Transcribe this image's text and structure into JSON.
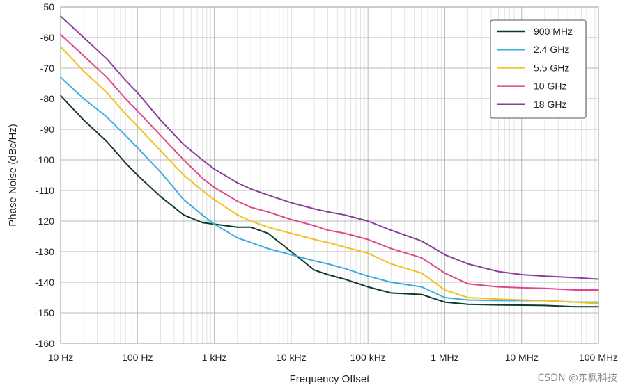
{
  "chart_data": {
    "type": "line",
    "xlabel": "Frequency Offset",
    "ylabel": "Phase Noise (dBc/Hz)",
    "x_scale": "log",
    "xlim": [
      10,
      100000000
    ],
    "ylim": [
      -160,
      -50
    ],
    "grid": true,
    "legend_position": "top-right",
    "x_ticks": [
      {
        "value": 10,
        "label": "10 Hz"
      },
      {
        "value": 100,
        "label": "100 Hz"
      },
      {
        "value": 1000,
        "label": "1 kHz"
      },
      {
        "value": 10000,
        "label": "10 kHz"
      },
      {
        "value": 100000,
        "label": "100 kHz"
      },
      {
        "value": 1000000,
        "label": "1 MHz"
      },
      {
        "value": 10000000,
        "label": "10 MHz"
      },
      {
        "value": 100000000,
        "label": "100 MHz"
      }
    ],
    "y_ticks": [
      -50,
      -60,
      -70,
      -80,
      -90,
      -100,
      -110,
      -120,
      -130,
      -140,
      -150,
      -160
    ],
    "series": [
      {
        "name": "900 MHz",
        "color": "#0d3a2a",
        "x": [
          10,
          20,
          40,
          70,
          100,
          200,
          400,
          700,
          1000,
          2000,
          3000,
          5000,
          10000,
          20000,
          30000,
          50000,
          100000,
          200000,
          500000,
          1000000,
          2000000,
          5000000,
          10000000,
          20000000,
          50000000,
          100000000
        ],
        "y": [
          -79,
          -87,
          -94,
          -101,
          -105,
          -112,
          -118,
          -120.5,
          -121,
          -122,
          -122,
          -124,
          -130,
          -136,
          -137.5,
          -139,
          -141.5,
          -143.5,
          -144,
          -146.5,
          -147.2,
          -147.4,
          -147.5,
          -147.6,
          -148,
          -148
        ]
      },
      {
        "name": "2.4 GHz",
        "color": "#3aaee0",
        "x": [
          10,
          20,
          40,
          70,
          100,
          200,
          400,
          700,
          1000,
          2000,
          3000,
          5000,
          10000,
          20000,
          30000,
          50000,
          100000,
          200000,
          500000,
          1000000,
          2000000,
          5000000,
          10000000,
          20000000,
          50000000,
          100000000
        ],
        "y": [
          -73,
          -80,
          -86,
          -92,
          -96,
          -104,
          -113,
          -118,
          -121,
          -125.5,
          -127,
          -129,
          -131,
          -133,
          -134,
          -135.5,
          -138,
          -140,
          -141.5,
          -145,
          -145.8,
          -146,
          -146,
          -146,
          -146.5,
          -146.5
        ]
      },
      {
        "name": "5.5 GHz",
        "color": "#f2c01e",
        "x": [
          10,
          20,
          40,
          70,
          100,
          200,
          400,
          700,
          1000,
          2000,
          3000,
          5000,
          10000,
          20000,
          30000,
          50000,
          100000,
          200000,
          500000,
          1000000,
          2000000,
          5000000,
          10000000,
          20000000,
          50000000,
          100000000
        ],
        "y": [
          -63,
          -71,
          -78,
          -85,
          -89,
          -97,
          -105,
          -110,
          -113,
          -118,
          -120,
          -122,
          -124,
          -126,
          -127,
          -128.5,
          -130.5,
          -134,
          -137,
          -142.5,
          -145,
          -145.5,
          -145.8,
          -146,
          -146.5,
          -147
        ]
      },
      {
        "name": "10 GHz",
        "color": "#e0488a",
        "x": [
          10,
          20,
          40,
          70,
          100,
          200,
          400,
          700,
          1000,
          2000,
          3000,
          5000,
          10000,
          20000,
          30000,
          50000,
          100000,
          200000,
          500000,
          1000000,
          2000000,
          5000000,
          10000000,
          20000000,
          50000000,
          100000000
        ],
        "y": [
          -59,
          -66,
          -73,
          -80,
          -84,
          -92,
          -100,
          -106,
          -109,
          -113.5,
          -115.5,
          -117,
          -119.5,
          -121.5,
          -123,
          -124,
          -126,
          -129,
          -132,
          -137,
          -140.5,
          -141.5,
          -141.8,
          -142,
          -142.5,
          -142.5
        ]
      },
      {
        "name": "18 GHz",
        "color": "#8a3d9b",
        "x": [
          10,
          20,
          40,
          70,
          100,
          200,
          400,
          700,
          1000,
          2000,
          3000,
          5000,
          10000,
          20000,
          30000,
          50000,
          100000,
          200000,
          500000,
          1000000,
          2000000,
          5000000,
          10000000,
          20000000,
          50000000,
          100000000
        ],
        "y": [
          -53,
          -60,
          -67,
          -74,
          -78,
          -87,
          -95,
          -100,
          -103,
          -107.5,
          -109.5,
          -111.5,
          -114,
          -116,
          -117,
          -118,
          -120,
          -123,
          -126.5,
          -131,
          -134,
          -136.5,
          -137.5,
          -138,
          -138.5,
          -139
        ]
      }
    ]
  },
  "watermark": "CSDN @东枫科技"
}
